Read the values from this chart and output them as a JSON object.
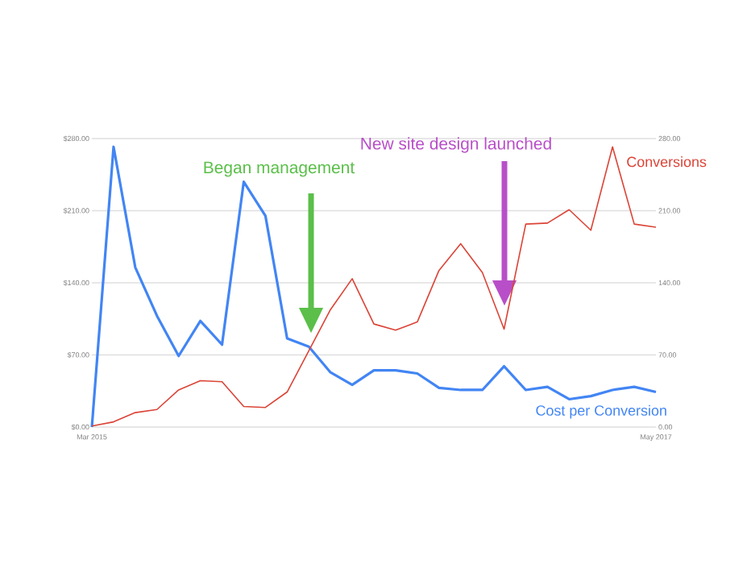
{
  "chart_data": {
    "type": "line",
    "categories": [
      "Mar 2015",
      null,
      null,
      null,
      null,
      null,
      null,
      null,
      null,
      null,
      null,
      null,
      null,
      null,
      null,
      null,
      null,
      null,
      null,
      null,
      null,
      null,
      null,
      null,
      null,
      null,
      "May 2017"
    ],
    "series": [
      {
        "name": "Cost per Conversion",
        "color": "#4285f4",
        "values": [
          0,
          272,
          155,
          108,
          69,
          103,
          80,
          238,
          205,
          86,
          78,
          53,
          41,
          55,
          55,
          52,
          38,
          36,
          36,
          59,
          36,
          39,
          27,
          30,
          36,
          39,
          34
        ]
      },
      {
        "name": "Conversions",
        "color": "#db4437",
        "axis": "y2",
        "values": [
          1,
          5,
          14,
          17,
          36,
          45,
          44,
          20,
          19,
          34,
          74,
          114,
          144,
          100,
          94,
          102,
          152,
          178,
          150,
          95,
          197,
          198,
          211,
          191,
          272,
          197,
          194
        ]
      }
    ],
    "ylim": [
      0,
      280
    ],
    "yticks": [
      {
        "value": 0,
        "label": "$0.00"
      },
      {
        "value": 70,
        "label": "$70.00"
      },
      {
        "value": 140,
        "label": "$140.00"
      },
      {
        "value": 210,
        "label": "$210.00"
      },
      {
        "value": 280,
        "label": "$280.00"
      }
    ],
    "y2lim": [
      0,
      280
    ],
    "y2ticks": [
      {
        "value": 0,
        "label": "0.00"
      },
      {
        "value": 70,
        "label": "70.00"
      },
      {
        "value": 140,
        "label": "140.00"
      },
      {
        "value": 210,
        "label": "210.00"
      },
      {
        "value": 280,
        "label": "280.00"
      }
    ],
    "grid": "y",
    "marker": "none",
    "line_style": "solid",
    "annotations": [
      "Began management",
      "New site design launched"
    ]
  }
}
